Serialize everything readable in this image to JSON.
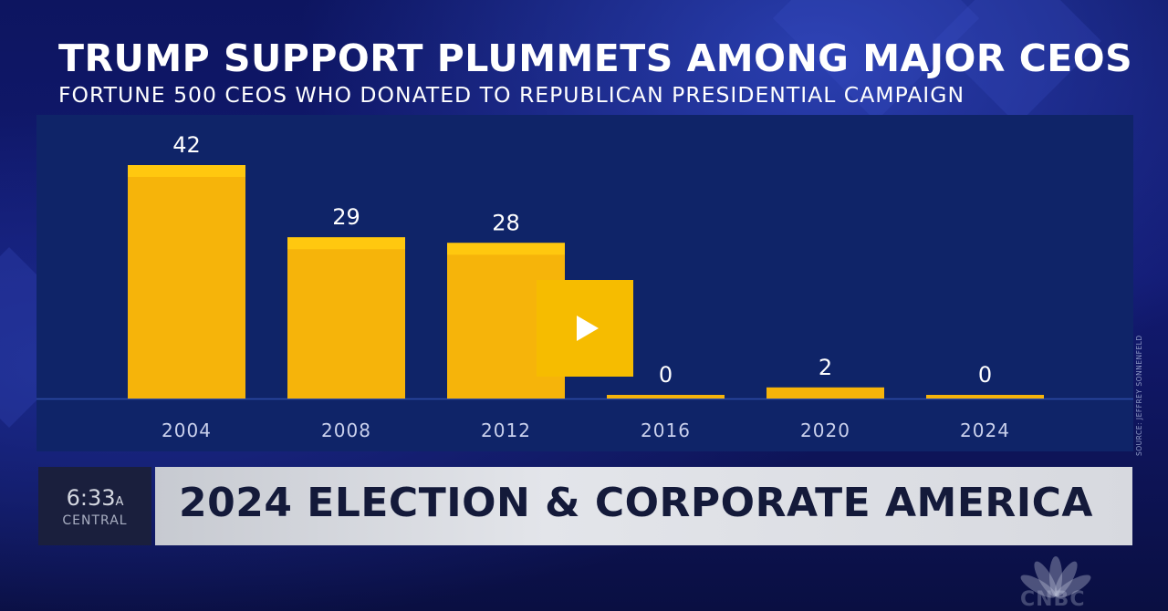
{
  "headline": "TRUMP SUPPORT PLUMMETS AMONG MAJOR CEOS",
  "subheadline": "FORTUNE 500 CEOS WHO DONATED TO REPUBLICAN PRESIDENTIAL CAMPAIGN",
  "source": "SOURCE: JEFFREY SONNENFELD",
  "clock": {
    "time": "6:33",
    "ampm": "A",
    "zone": "CENTRAL"
  },
  "banner": "2024 ELECTION & CORPORATE AMERICA",
  "network": "CNBC",
  "player": {
    "play_icon": "play-icon",
    "button_color": "#f6bc00"
  },
  "colors": {
    "bar": "#f6b40a",
    "bar_top": "#ffc80f",
    "panel": "#0f2468"
  },
  "chart_data": {
    "type": "bar",
    "title": "TRUMP SUPPORT PLUMMETS AMONG MAJOR CEOS",
    "subtitle": "FORTUNE 500 CEOS WHO DONATED TO REPUBLICAN PRESIDENTIAL CAMPAIGN",
    "categories": [
      "2004",
      "2008",
      "2012",
      "2016",
      "2020",
      "2024"
    ],
    "values": [
      42,
      29,
      28,
      0,
      2,
      0
    ],
    "xlabel": "",
    "ylabel": "",
    "ylim": [
      0,
      42
    ],
    "grid": false,
    "legend": "none",
    "data_labels": true
  }
}
